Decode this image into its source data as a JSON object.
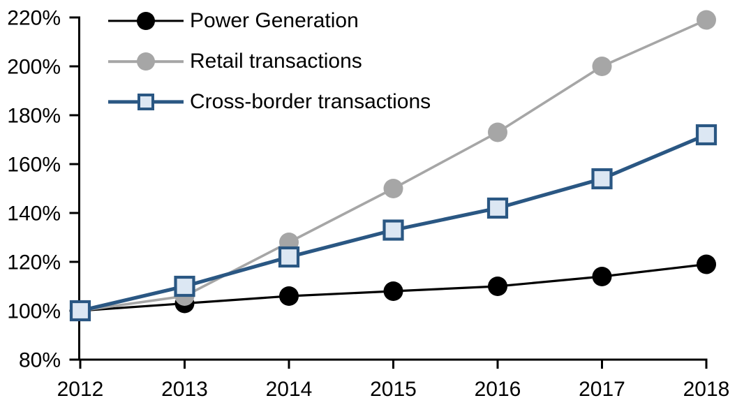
{
  "chart_data": {
    "type": "line",
    "title": "",
    "xlabel": "",
    "ylabel": "",
    "categories": [
      "2012",
      "2013",
      "2014",
      "2015",
      "2016",
      "2017",
      "2018"
    ],
    "series": [
      {
        "name": "Power Generation",
        "values": [
          100,
          103,
          106,
          108,
          110,
          114,
          119
        ],
        "color": "#000000",
        "marker": "circle",
        "marker_fill": "#000000",
        "line_width": 3.2
      },
      {
        "name": "Retail transactions",
        "values": [
          100,
          106,
          128,
          150,
          173,
          200,
          219
        ],
        "color": "#A6A6A6",
        "marker": "circle",
        "marker_fill": "#A6A6A6",
        "line_width": 3.6
      },
      {
        "name": "Cross-border transactions",
        "values": [
          100,
          110,
          122,
          133,
          142,
          154,
          172
        ],
        "color": "#2A5783",
        "marker": "square",
        "marker_fill": "#DCE7F3",
        "line_width": 5.2
      }
    ],
    "y_axis": {
      "min": 80,
      "max": 220,
      "step": 20,
      "tick_suffix": "%"
    },
    "x_axis": {
      "ticks": [
        "2012",
        "2013",
        "2014",
        "2015",
        "2016",
        "2017",
        "2018"
      ]
    },
    "legend_position": "top-left",
    "grid": false,
    "axis_color": "#000000",
    "background_color": "#FFFFFF"
  }
}
